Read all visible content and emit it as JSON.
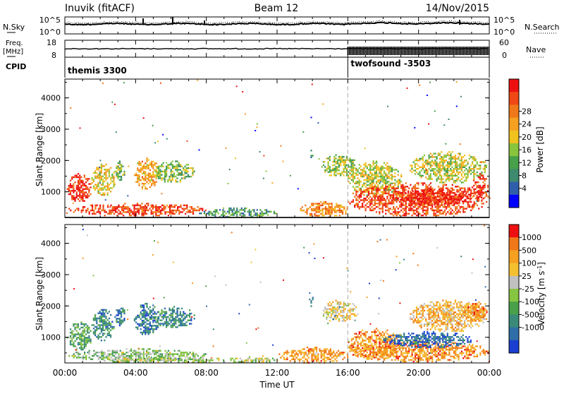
{
  "header": {
    "station": "Inuvik (fitACF)",
    "beam": "Beam 12",
    "date": "14/Nov/2015"
  },
  "nsky_panel": {
    "left_label": "N.Sky",
    "right_label": "N.Search",
    "ticks_left": [
      "10^5",
      "10^0"
    ],
    "ticks_right": [
      "10^5",
      "10^0"
    ]
  },
  "freq_panel": {
    "left_label_1": "Freq.",
    "left_label_2": "[MHz]",
    "right_label": "Nave",
    "ticks_left": [
      "18",
      "8"
    ],
    "ticks_right": [
      "60",
      "0"
    ]
  },
  "cpid_panel": {
    "label": "CPID",
    "modes": [
      {
        "name": "themis 3300",
        "start_hour": 0
      },
      {
        "name": "twofsound -3503",
        "start_hour": 16
      }
    ]
  },
  "time_axis": {
    "label": "Time UT",
    "ticks": [
      "00:00",
      "04:00",
      "08:00",
      "12:00",
      "16:00",
      "20:00",
      "00:00"
    ]
  },
  "chart_data": [
    {
      "type": "heatmap",
      "quantity": "power",
      "xlabel": "Time UT",
      "ylabel": "Slant Range [km]",
      "xlim": [
        0,
        24
      ],
      "ylim": [
        180,
        4600
      ],
      "yticks": [
        "1000",
        "2000",
        "3000",
        "4000"
      ],
      "colorbar": {
        "label": "Power [dB]",
        "ticks": [
          "4",
          "8",
          "12",
          "16",
          "20",
          "24",
          "28"
        ],
        "colors": [
          "#0000ff",
          "#2f5faa",
          "#3d8a6e",
          "#47a04a",
          "#88c43c",
          "#f0c21e",
          "#f5a020",
          "#f07818",
          "#ef4814",
          "#ee1010"
        ]
      },
      "regions": [
        {
          "t": [
            0.1,
            1.5
          ],
          "r": [
            700,
            1600
          ],
          "level": 0.9
        },
        {
          "t": [
            1.5,
            2.8
          ],
          "r": [
            900,
            1900
          ],
          "level": 0.55
        },
        {
          "t": [
            2.8,
            3.4
          ],
          "r": [
            1400,
            2000
          ],
          "level": 0.4
        },
        {
          "t": [
            3.9,
            5.3
          ],
          "r": [
            1100,
            2100
          ],
          "level": 0.65
        },
        {
          "t": [
            5.0,
            7.3
          ],
          "r": [
            1300,
            2000
          ],
          "level": 0.4
        },
        {
          "t": [
            0.2,
            8.0
          ],
          "r": [
            250,
            650
          ],
          "level": 0.85
        },
        {
          "t": [
            7.5,
            12.0
          ],
          "r": [
            200,
            500
          ],
          "level": 0.3
        },
        {
          "t": [
            13.3,
            16.0
          ],
          "r": [
            200,
            700
          ],
          "level": 0.7
        },
        {
          "t": [
            13.8,
            14.0
          ],
          "r": [
            2000,
            2400
          ],
          "level": 0.3
        },
        {
          "t": [
            14.5,
            16.5
          ],
          "r": [
            1500,
            2200
          ],
          "level": 0.45
        },
        {
          "t": [
            16.0,
            19.0
          ],
          "r": [
            900,
            2000
          ],
          "level": 0.5
        },
        {
          "t": [
            16.0,
            23.9
          ],
          "r": [
            250,
            1300
          ],
          "level": 0.85
        },
        {
          "t": [
            18.5,
            23.0
          ],
          "r": [
            600,
            1100
          ],
          "level": 0.95
        },
        {
          "t": [
            19.5,
            23.8
          ],
          "r": [
            1300,
            2300
          ],
          "level": 0.5
        },
        {
          "t": [
            23.0,
            23.9
          ],
          "r": [
            700,
            1600
          ],
          "level": 0.9
        }
      ]
    },
    {
      "type": "heatmap",
      "quantity": "velocity",
      "xlabel": "Time UT",
      "ylabel": "Slant Range [km]",
      "xlim": [
        0,
        24
      ],
      "ylim": [
        180,
        4600
      ],
      "yticks": [
        "1000",
        "2000",
        "3000",
        "4000"
      ],
      "colorbar": {
        "label": "Velocity [m s^-1]",
        "ticks": [
          "1000",
          "500",
          "100",
          "25",
          "-25",
          "-100",
          "-500",
          "-1000"
        ],
        "colors": [
          "#1a3fd0",
          "#2f6ea8",
          "#3a8a7a",
          "#4aa04a",
          "#86c540",
          "#c0c0c0",
          "#f5c030",
          "#f5a020",
          "#f07818",
          "#ee1010"
        ]
      },
      "regions": [
        {
          "t": [
            0.1,
            1.5
          ],
          "r": [
            600,
            1500
          ],
          "level": 0.35
        },
        {
          "t": [
            1.5,
            2.8
          ],
          "r": [
            900,
            1900
          ],
          "level": 0.25
        },
        {
          "t": [
            2.8,
            3.4
          ],
          "r": [
            1400,
            2000
          ],
          "level": 0.2
        },
        {
          "t": [
            3.9,
            5.3
          ],
          "r": [
            1100,
            2100
          ],
          "level": 0.2
        },
        {
          "t": [
            5.0,
            7.3
          ],
          "r": [
            1300,
            2000
          ],
          "level": 0.25
        },
        {
          "t": [
            0.2,
            8.0
          ],
          "r": [
            250,
            650
          ],
          "level": 0.45
        },
        {
          "t": [
            2.0,
            9.0
          ],
          "r": [
            200,
            400
          ],
          "level": 0.5
        },
        {
          "t": [
            9.0,
            12.0
          ],
          "r": [
            200,
            400
          ],
          "level": 0.5
        },
        {
          "t": [
            12.0,
            16.0
          ],
          "r": [
            200,
            700
          ],
          "level": 0.75
        },
        {
          "t": [
            13.8,
            14.0
          ],
          "r": [
            2000,
            2400
          ],
          "level": 0.2
        },
        {
          "t": [
            14.5,
            16.5
          ],
          "r": [
            1500,
            2200
          ],
          "level": 0.6
        },
        {
          "t": [
            16.0,
            19.0
          ],
          "r": [
            300,
            1300
          ],
          "level": 0.78
        },
        {
          "t": [
            16.0,
            23.9
          ],
          "r": [
            250,
            900
          ],
          "level": 0.78
        },
        {
          "t": [
            18.0,
            23.0
          ],
          "r": [
            700,
            1200
          ],
          "level": 0.15
        },
        {
          "t": [
            19.5,
            23.8
          ],
          "r": [
            1200,
            2200
          ],
          "level": 0.7
        },
        {
          "t": [
            22.5,
            23.9
          ],
          "r": [
            1500,
            2200
          ],
          "level": 0.8
        }
      ]
    }
  ]
}
